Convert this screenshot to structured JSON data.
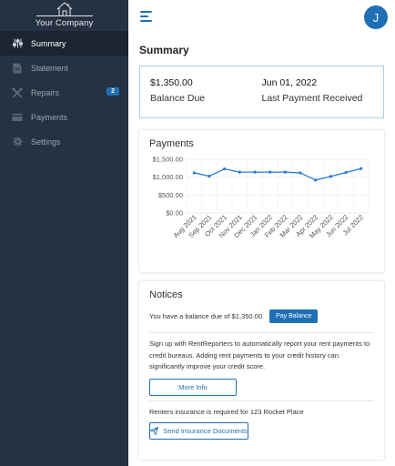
{
  "sidebar": {
    "logo_text": "Your Company",
    "items": [
      {
        "label": "Summary",
        "icon": "sliders-icon",
        "active": true
      },
      {
        "label": "Statement",
        "icon": "document-icon"
      },
      {
        "label": "Repairs",
        "icon": "tools-icon",
        "badge": "2"
      },
      {
        "label": "Payments",
        "icon": "credit-card-icon"
      },
      {
        "label": "Settings",
        "icon": "gear-icon"
      }
    ]
  },
  "header": {
    "avatar_initial": "J",
    "menu_icon": "hamburger-icon"
  },
  "page": {
    "title": "Summary"
  },
  "summary": {
    "balance_value": "$1,350.00",
    "balance_label": "Balance Due",
    "last_payment_value": "Jun 01, 2022",
    "last_payment_label": "Last Payment Received"
  },
  "payments": {
    "title": "Payments"
  },
  "chart_data": {
    "type": "line",
    "categories": [
      "Aug 2021",
      "Sep 2021",
      "Oct 2021",
      "Nov 2021",
      "Dec 2021",
      "Jan 2022",
      "Feb 2022",
      "Mar 2022",
      "Apr 2022",
      "May 2022",
      "Jun 2022",
      "Jul 2022"
    ],
    "series": [
      {
        "values": [
          1120,
          1030,
          1230,
          1140,
          1140,
          1140,
          1140,
          1120,
          920,
          1020,
          1130,
          1240
        ]
      }
    ],
    "y_ticks": [
      "$1,500.00",
      "$1,000.00",
      "$500.00",
      "$0.00"
    ],
    "ylim": [
      0,
      1500
    ],
    "grid": true,
    "color": "#2b7bd0"
  },
  "notices": {
    "title": "Notices",
    "balance_text": "You have a balance due of $1,350.00.",
    "pay_button": "Pay Balance",
    "rent_reporters_text": "Sign up with RentReporters to automatically report your rent payments to credit bureaus. Adding rent payments to your credit history can significantly improve your credit score.",
    "more_info_button": "More Info",
    "insurance_text": "Renters insurance is required for",
    "insurance_address": "123 Rocket Place",
    "send_insurance_button": "Send Insurance Documents"
  },
  "colors": {
    "sidebar_bg": "#263241",
    "accent": "#1f6fb6",
    "summary_border": "#a9cfe8"
  }
}
